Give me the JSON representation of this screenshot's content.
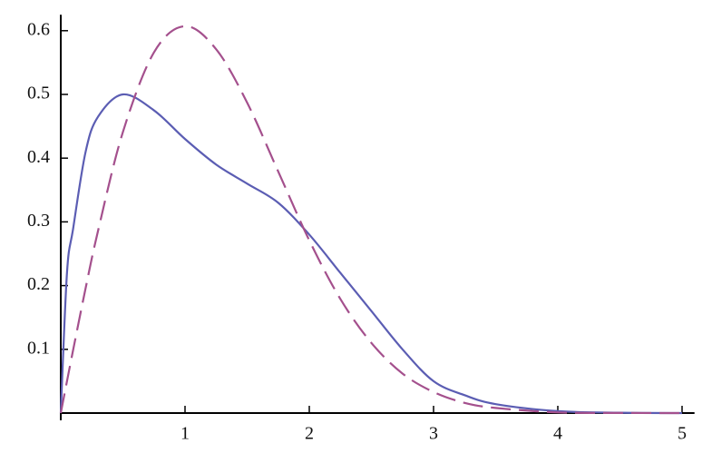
{
  "chart_data": {
    "type": "line",
    "x": [
      0,
      0.05,
      0.1,
      0.2,
      0.3,
      0.5,
      0.75,
      1,
      1.25,
      1.5,
      1.75,
      2,
      2.25,
      2.5,
      2.75,
      3,
      3.25,
      3.5,
      4,
      4.5,
      5
    ],
    "series": [
      {
        "color": "#5b5db3",
        "dash": false,
        "values": [
          0,
          0.22,
          0.29,
          0.41,
          0.465,
          0.5,
          0.475,
          0.43,
          0.39,
          0.36,
          0.33,
          0.28,
          0.22,
          0.16,
          0.1,
          0.05,
          0.028,
          0.014,
          0.003,
          0.0005,
          0
        ]
      },
      {
        "color": "#a4508d",
        "dash": true,
        "values": [
          0,
          0.05,
          0.0995,
          0.196,
          0.286,
          0.441,
          0.566,
          0.607,
          0.571,
          0.487,
          0.379,
          0.271,
          0.179,
          0.11,
          0.062,
          0.033,
          0.016,
          0.008,
          0.001,
          0.0002,
          0
        ]
      }
    ],
    "xlim": [
      0,
      5.1
    ],
    "ylim": [
      0,
      0.625
    ],
    "xticks": [
      1,
      2,
      3,
      4,
      5
    ],
    "yticks": [
      0.1,
      0.2,
      0.3,
      0.4,
      0.5,
      0.6
    ]
  }
}
